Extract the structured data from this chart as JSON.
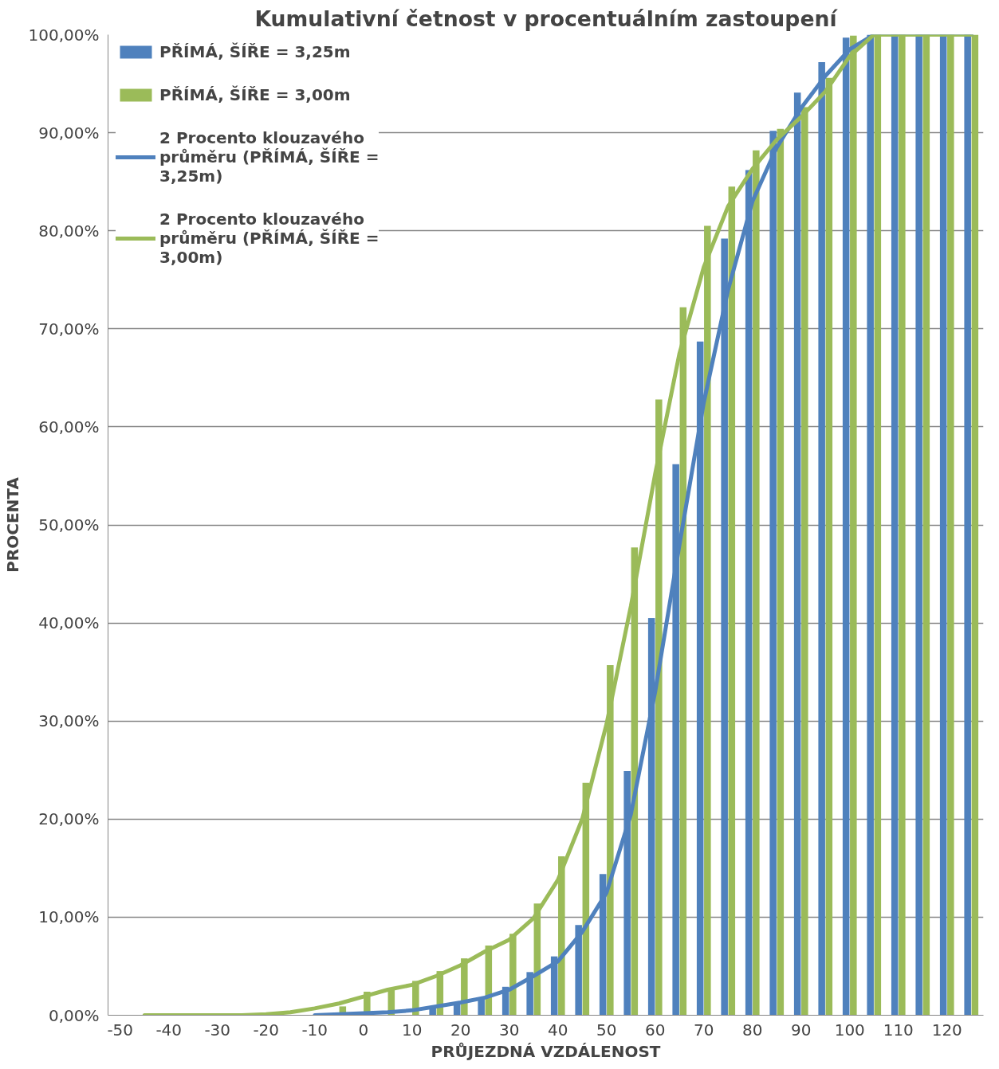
{
  "chart_data": {
    "type": "bar",
    "title": "Kumulativní četnost v procentuálním zastoupení",
    "xlabel": "PRŮJEZDNÁ VZDÁLENOST",
    "ylabel": "PROCENTA",
    "categories": [
      "-50",
      null,
      "-40",
      null,
      "-30",
      null,
      "-20",
      null,
      "-10",
      null,
      "0",
      null,
      "10",
      null,
      "20",
      null,
      "30",
      null,
      "40",
      null,
      "50",
      null,
      "60",
      null,
      "70",
      null,
      "80",
      null,
      "90",
      null,
      "100",
      null,
      "110",
      null,
      "120",
      null
    ],
    "series": [
      {
        "name": "PŘÍMÁ, ŠÍŘE = 3,25m",
        "color": "#4f81bd",
        "values": [
          0,
          0,
          0,
          0,
          0,
          0,
          0,
          0,
          0,
          0,
          0,
          0,
          0,
          0.7,
          1.3,
          1.6,
          2.9,
          4.4,
          6.0,
          9.2,
          14.4,
          24.9,
          40.5,
          56.2,
          68.7,
          79.2,
          86.2,
          90.2,
          94.1,
          97.2,
          99.7,
          100,
          100,
          100,
          100,
          100
        ]
      },
      {
        "name": "PŘÍMÁ, ŠÍŘE = 3,00m",
        "color": "#9bbb59",
        "values": [
          0,
          0,
          0,
          0,
          0,
          0,
          0,
          0,
          0,
          0.9,
          2.4,
          2.7,
          3.5,
          4.5,
          5.8,
          7.1,
          8.3,
          11.4,
          16.2,
          23.7,
          35.7,
          47.7,
          62.8,
          72.2,
          80.5,
          84.5,
          88.2,
          90.4,
          92.6,
          95.6,
          99.9,
          100,
          100,
          100,
          100,
          100
        ]
      },
      {
        "name": "2 Procento klouzavého průměru (PŘÍMÁ, ŠÍŘE = 3,25m)",
        "type": "line",
        "color": "#4f81bd",
        "values": [
          null,
          null,
          null,
          null,
          null,
          null,
          null,
          null,
          0,
          0.1,
          0.2,
          0.3,
          0.5,
          0.9,
          1.3,
          1.8,
          2.6,
          4.0,
          5.5,
          8.5,
          12.5,
          20.5,
          33,
          48,
          62.5,
          74,
          83,
          88.5,
          92.5,
          95.8,
          98.5,
          100,
          100,
          100,
          100,
          100
        ]
      },
      {
        "name": "2 Procento klouzavého průměru (PŘÍMÁ, ŠÍŘE = 3,00m)",
        "type": "line",
        "color": "#9bbb59",
        "values": [
          null,
          0,
          0,
          0,
          0,
          0,
          0.1,
          0.3,
          0.7,
          1.2,
          1.9,
          2.6,
          3.1,
          4.0,
          5.1,
          6.5,
          7.7,
          9.9,
          13.8,
          20,
          29.7,
          41.7,
          55.2,
          67.5,
          76.3,
          82.5,
          86.3,
          89.3,
          91.6,
          94.2,
          97.8,
          100,
          100,
          100,
          100,
          100
        ]
      }
    ],
    "ylim": [
      0,
      100
    ],
    "yticks": [
      {
        "value": 0,
        "label": "0,00%"
      },
      {
        "value": 10,
        "label": "10,00%"
      },
      {
        "value": 20,
        "label": "20,00%"
      },
      {
        "value": 30,
        "label": "30,00%"
      },
      {
        "value": 40,
        "label": "40,00%"
      },
      {
        "value": 50,
        "label": "50,00%"
      },
      {
        "value": 60,
        "label": "60,00%"
      },
      {
        "value": 70,
        "label": "70,00%"
      },
      {
        "value": 80,
        "label": "80,00%"
      },
      {
        "value": 90,
        "label": "90,00%"
      },
      {
        "value": 100,
        "label": "100,00%"
      }
    ],
    "grid": "y",
    "legend": "top left",
    "marker": "none",
    "line_style": "solid"
  }
}
